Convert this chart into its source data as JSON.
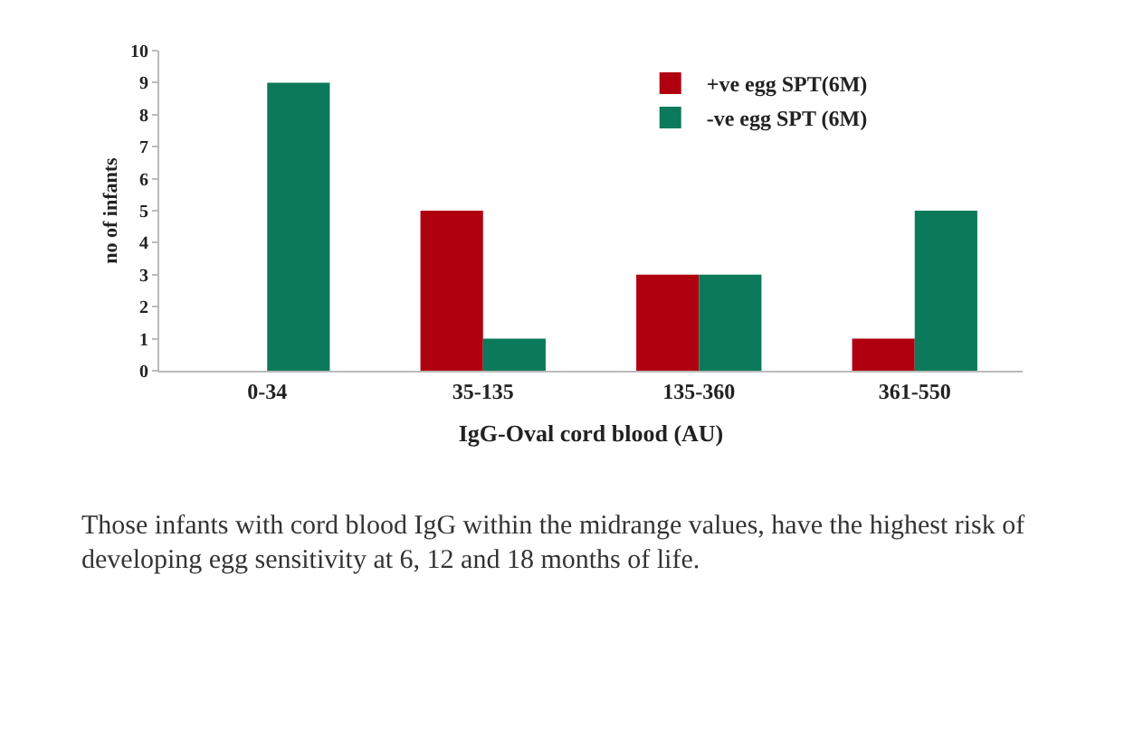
{
  "chart_data": {
    "type": "bar",
    "xlabel": "IgG-Oval cord blood (AU)",
    "ylabel": "no of infants",
    "categories": [
      "0-34",
      "35-135",
      "135-360",
      "361-550"
    ],
    "series": [
      {
        "name": "+ve egg SPT(6M)",
        "color": "#b00010",
        "values": [
          0,
          5,
          3,
          1
        ]
      },
      {
        "name": "-ve egg SPT (6M)",
        "color": "#0a7a5a",
        "values": [
          9,
          1,
          3,
          5
        ]
      }
    ],
    "ylim": [
      0,
      10
    ],
    "yticks": [
      0,
      1,
      2,
      3,
      4,
      5,
      6,
      7,
      8,
      9,
      10
    ],
    "grid": false,
    "legend": "top right",
    "annotations": [
      "Those infants with cord blood IgG within the midrange values, have the highest risk of developing egg sensitivity at 6, 12 and 18 months of life."
    ]
  }
}
